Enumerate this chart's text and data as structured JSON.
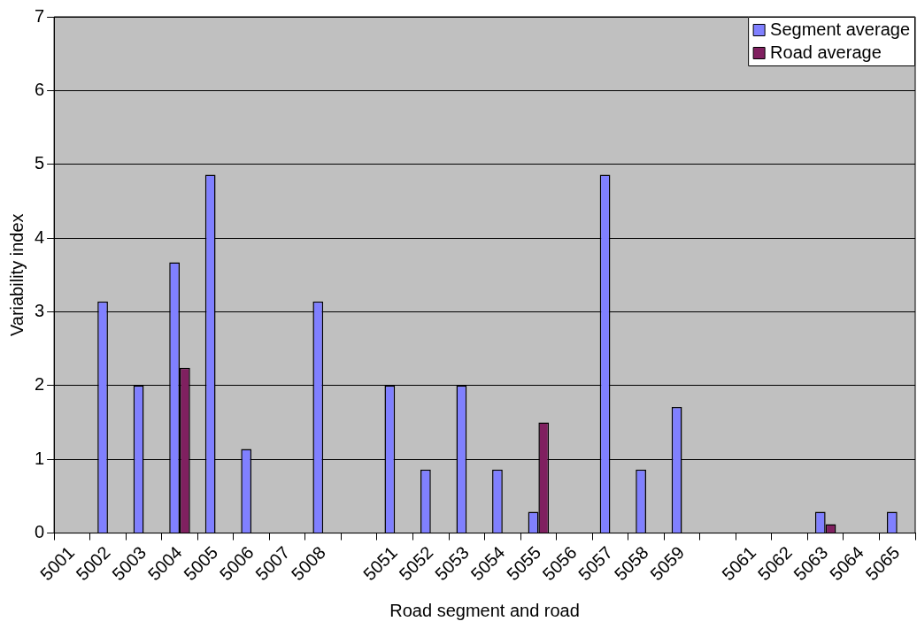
{
  "chart_data": {
    "type": "bar",
    "xlabel": "Road segment and road",
    "ylabel": "Variability index",
    "categories": [
      "5001",
      "5002",
      "5003",
      "5004",
      "5005",
      "5006",
      "5007",
      "5008",
      null,
      "5051",
      "5052",
      "5053",
      "5054",
      "5055",
      "5056",
      "5057",
      "5058",
      "5059",
      null,
      "5061",
      "5062",
      "5063",
      "5064",
      "5065"
    ],
    "series": [
      {
        "name": "Segment average",
        "color": "#8080ff",
        "values": [
          null,
          3.14,
          2,
          3.67,
          4.86,
          1.14,
          null,
          3.14,
          null,
          2,
          0.86,
          2,
          0.86,
          0.29,
          null,
          4.86,
          0.86,
          1.71,
          null,
          null,
          null,
          0.29,
          null,
          0.29
        ]
      },
      {
        "name": "Road average",
        "color": "#802060",
        "values": [
          null,
          null,
          null,
          2.24,
          null,
          null,
          null,
          null,
          null,
          null,
          null,
          null,
          null,
          1.5,
          null,
          null,
          null,
          null,
          null,
          null,
          null,
          0.12,
          null,
          null
        ]
      }
    ],
    "ylim": [
      0,
      7
    ],
    "yticks": [
      0,
      1,
      2,
      3,
      4,
      5,
      6,
      7
    ],
    "grid": "y",
    "legend": "top right"
  }
}
